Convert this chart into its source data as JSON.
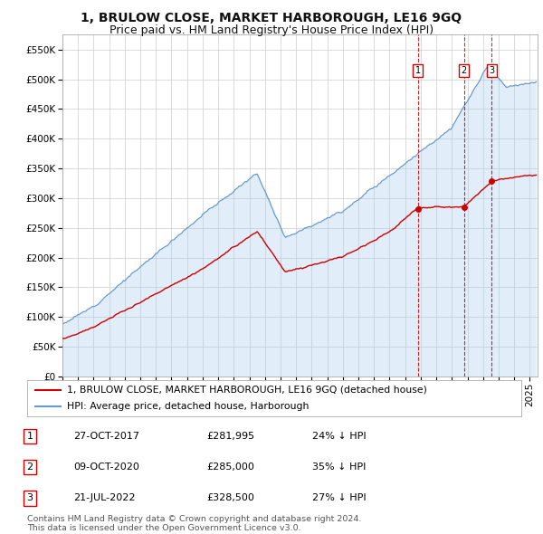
{
  "title": "1, BRULOW CLOSE, MARKET HARBOROUGH, LE16 9GQ",
  "subtitle": "Price paid vs. HM Land Registry's House Price Index (HPI)",
  "ylim": [
    0,
    575000
  ],
  "yticks": [
    0,
    50000,
    100000,
    150000,
    200000,
    250000,
    300000,
    350000,
    400000,
    450000,
    500000,
    550000
  ],
  "xlim_start": 1995.0,
  "xlim_end": 2025.5,
  "sale_prices": [
    281995,
    285000,
    328500
  ],
  "sale_labels": [
    "1",
    "2",
    "3"
  ],
  "sale_date_floats": [
    2017.83,
    2020.78,
    2022.55
  ],
  "sale_info": [
    {
      "label": "1",
      "date": "27-OCT-2017",
      "price": "£281,995",
      "pct": "24%",
      "dir": "↓"
    },
    {
      "label": "2",
      "date": "09-OCT-2020",
      "price": "£285,000",
      "pct": "35%",
      "dir": "↓"
    },
    {
      "label": "3",
      "date": "21-JUL-2022",
      "price": "£328,500",
      "pct": "27%",
      "dir": "↓"
    }
  ],
  "legend_property": "1, BRULOW CLOSE, MARKET HARBOROUGH, LE16 9GQ (detached house)",
  "legend_hpi": "HPI: Average price, detached house, Harborough",
  "footer": "Contains HM Land Registry data © Crown copyright and database right 2024.\nThis data is licensed under the Open Government Licence v3.0.",
  "property_color": "#cc0000",
  "hpi_color": "#6699cc",
  "hpi_fill_color": "#aaccee",
  "background_color": "#ffffff",
  "grid_color": "#cccccc",
  "title_fontsize": 10,
  "subtitle_fontsize": 9,
  "tick_fontsize": 7.5,
  "legend_fontsize": 7.8,
  "table_fontsize": 8
}
